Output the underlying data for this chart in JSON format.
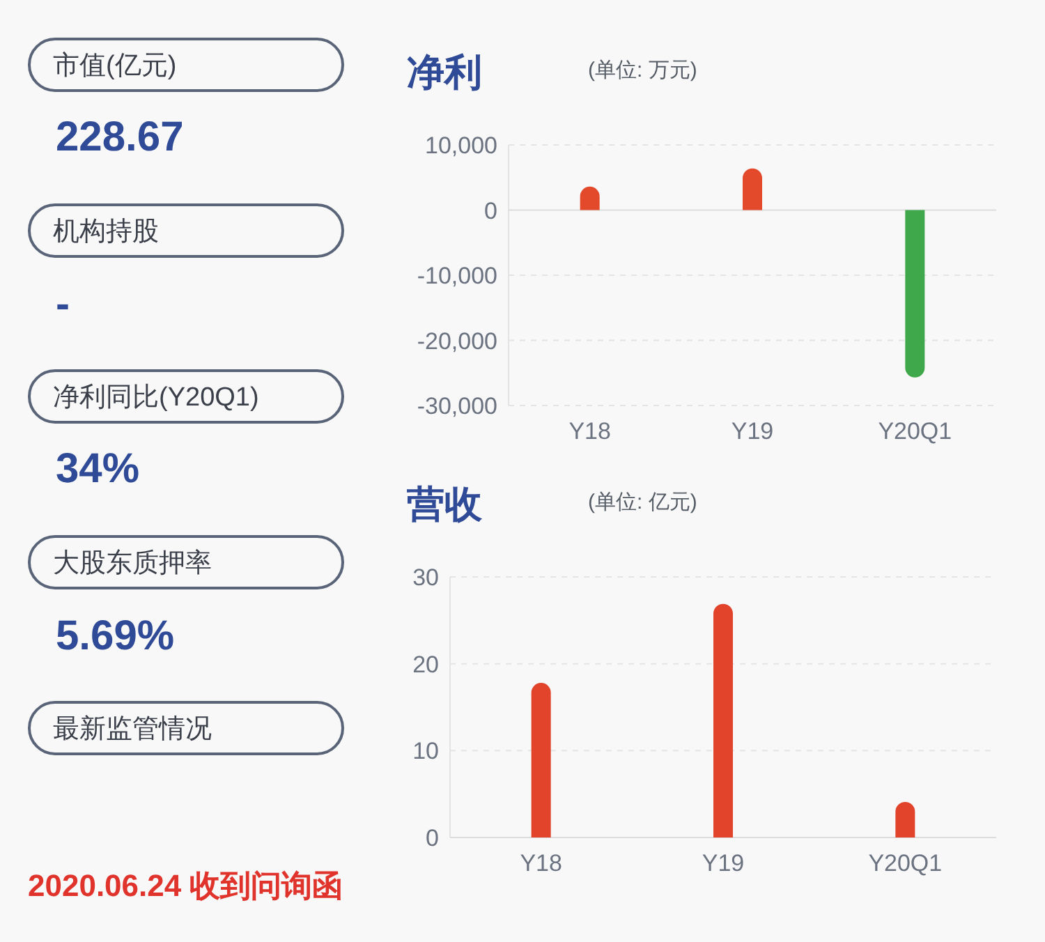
{
  "chart_data": [
    {
      "type": "other",
      "annotations": [
        "市值(亿元)",
        "228.67",
        "机构持股",
        "-",
        "净利同比(Y20Q1)",
        "34%",
        "大股东质押率",
        "5.69%",
        "最新监管情况",
        "2020.06.24 收到问询函"
      ]
    },
    {
      "type": "bar",
      "title": "净利",
      "subtitle": "(单位: 万元)",
      "categories": [
        "Y18",
        "Y19",
        "Y20Q1"
      ],
      "values": [
        3600,
        6400,
        -25700
      ],
      "colors": [
        "#e24a2b",
        "#e24a2b",
        "#3fa84a"
      ],
      "ylim": [
        -30000,
        10000
      ],
      "yticks": [
        {
          "value": -30000,
          "label": "-30,000"
        },
        {
          "value": -20000,
          "label": "-20,000"
        },
        {
          "value": -10000,
          "label": "-10,000"
        },
        0,
        {
          "value": 10000,
          "label": "10,000"
        }
      ],
      "grid": "y"
    },
    {
      "type": "bar",
      "title": "营收",
      "subtitle": "(单位: 亿元)",
      "categories": [
        "Y18",
        "Y19",
        "Y20Q1"
      ],
      "values": [
        17.8,
        26.9,
        4.1
      ],
      "colors": [
        "#e2432b",
        "#e2432b",
        "#e2432b"
      ],
      "ylim": [
        0,
        30
      ],
      "yticks": [
        0,
        10,
        20,
        30
      ],
      "grid": "y"
    }
  ]
}
